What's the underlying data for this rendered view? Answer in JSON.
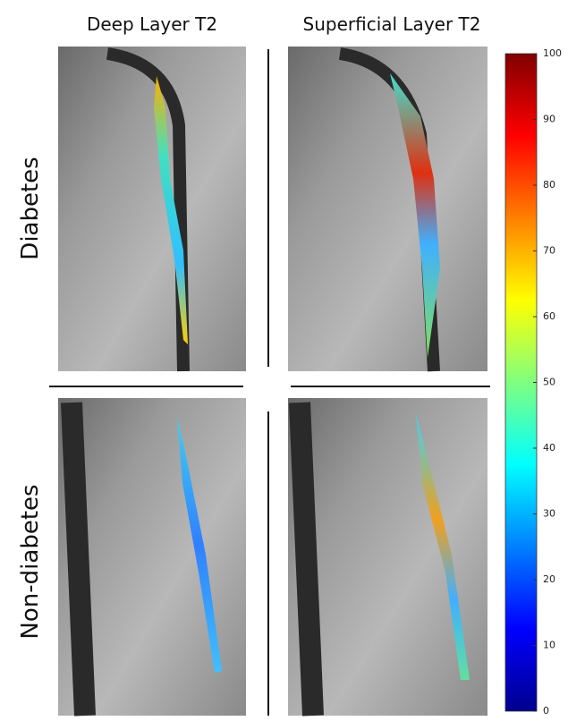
{
  "columns": [
    "Deep Layer T2",
    "Superficial Layer T2"
  ],
  "rows": [
    "Diabetes",
    "Non-diabetes"
  ],
  "colorbar": {
    "lim": [
      0,
      100
    ],
    "ticks": [
      0,
      10,
      20,
      30,
      40,
      50,
      60,
      70,
      80,
      90,
      100
    ]
  }
}
